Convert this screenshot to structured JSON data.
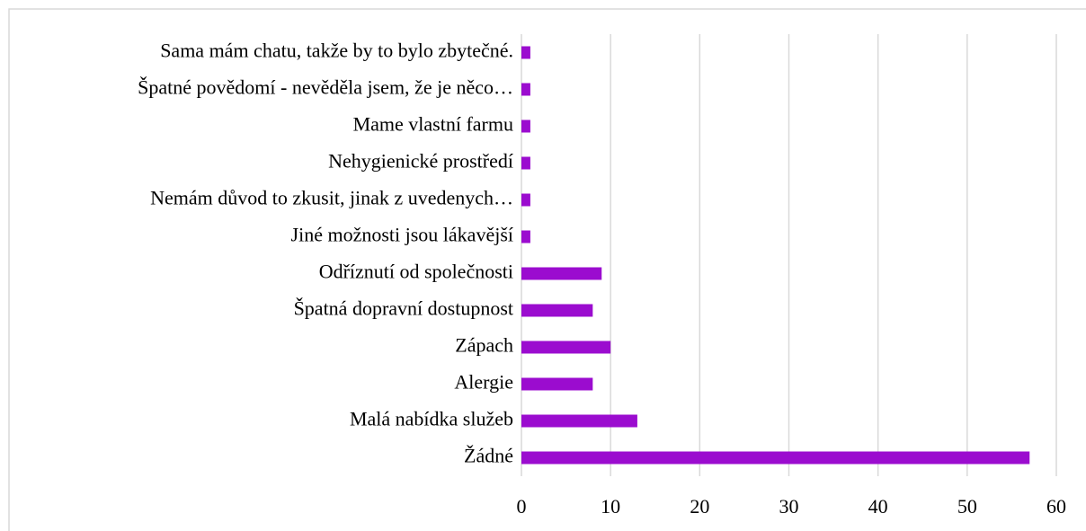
{
  "chart_data": {
    "type": "bar",
    "orientation": "horizontal",
    "categories": [
      "Sama mám chatu, takže by to bylo zbytečné.",
      "Špatné povědomí - nevěděla jsem, že je něco…",
      "Mame vlastní farmu",
      "Nehygienické prostředí",
      "Nemám důvod to zkusit, jinak z uvedenych…",
      "Jiné možnosti jsou lákavější",
      "Odříznutí od společnosti",
      "Špatná dopravní dostupnost",
      "Zápach",
      "Alergie",
      "Malá nabídka služeb",
      "Žádné"
    ],
    "values": [
      1,
      1,
      1,
      1,
      1,
      1,
      9,
      8,
      10,
      8,
      13,
      57
    ],
    "color": "#9b0ccf",
    "xlim": [
      0,
      60
    ],
    "xticks": [
      0,
      10,
      20,
      30,
      40,
      50,
      60
    ],
    "grid": true
  }
}
